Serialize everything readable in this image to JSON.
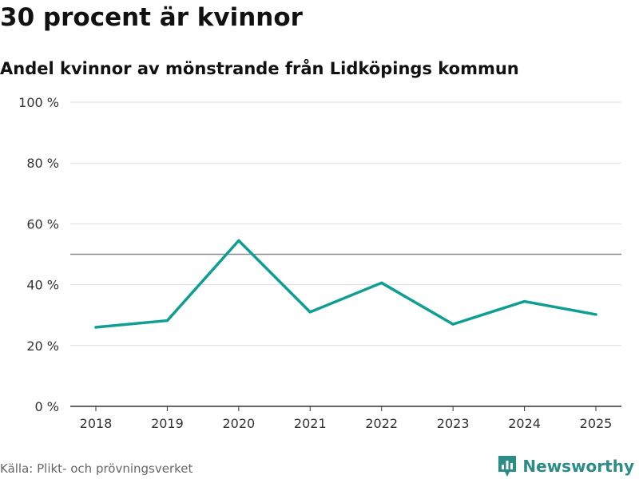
{
  "header": {
    "title": "30 procent är kvinnor",
    "subtitle": "Andel kvinnor av mönstrande från Lidköpings kommun"
  },
  "footer": {
    "source": "Källa: Plikt- och prövningsverket",
    "brand": "Newsworthy",
    "brand_icon": "bar-chart-icon"
  },
  "colors": {
    "line": "#0e9e94",
    "grid": "#dddddd",
    "reference": "#888888",
    "axis": "#333333",
    "brand": "#2b8d85"
  },
  "chart_data": {
    "type": "line",
    "title": "30 procent är kvinnor",
    "subtitle": "Andel kvinnor av mönstrande från Lidköpings kommun",
    "xlabel": "",
    "ylabel": "",
    "x": [
      "2018",
      "2019",
      "2020",
      "2021",
      "2022",
      "2023",
      "2024",
      "2025"
    ],
    "series": [
      {
        "name": "Andel kvinnor",
        "values": [
          26,
          28.2,
          54.5,
          31,
          40.6,
          27,
          34.5,
          30.2
        ]
      }
    ],
    "reference_line": 50,
    "ylim": [
      0,
      100
    ],
    "yticks": [
      0,
      20,
      40,
      60,
      80,
      100
    ],
    "ytick_labels": [
      "0 %",
      "20 %",
      "40 %",
      "60 %",
      "80 %",
      "100 %"
    ],
    "grid": true,
    "legend": "none"
  }
}
